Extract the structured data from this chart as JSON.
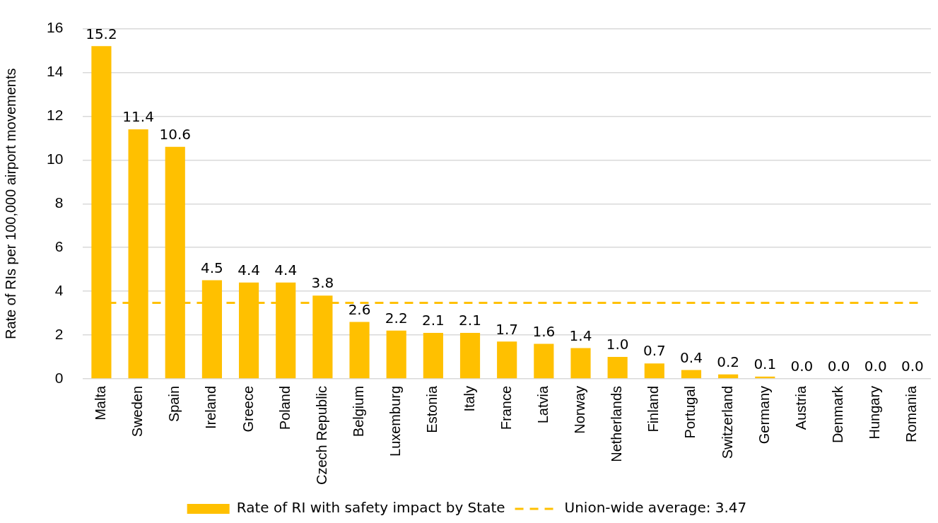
{
  "chart_data": {
    "type": "bar",
    "ylabel": "Rate of RIs per 100,000 airport movements",
    "categories": [
      "Malta",
      "Sweden",
      "Spain",
      "Ireland",
      "Greece",
      "Poland",
      "Czech Republic",
      "Belgium",
      "Luxemburg",
      "Estonia",
      "Italy",
      "France",
      "Latvia",
      "Norway",
      "Netherlands",
      "Finland",
      "Portugal",
      "Switzerland",
      "Germany",
      "Austria",
      "Denmark",
      "Hungary",
      "Romania"
    ],
    "series": [
      {
        "name": "Rate of RI with safety impact by State",
        "color": "#ffc000",
        "values": [
          15.2,
          11.4,
          10.6,
          4.5,
          4.4,
          4.4,
          3.8,
          2.6,
          2.2,
          2.1,
          2.1,
          1.7,
          1.6,
          1.4,
          1.0,
          0.7,
          0.4,
          0.2,
          0.1,
          0.0,
          0.0,
          0.0,
          0.0
        ],
        "value_labels": [
          "15.2",
          "11.4",
          "10.6",
          "4.5",
          "4.4",
          "4.4",
          "3.8",
          "2.6",
          "2.2",
          "2.1",
          "2.1",
          "1.7",
          "1.6",
          "1.4",
          "1.0",
          "0.7",
          "0.4",
          "0.2",
          "0.1",
          "0.0",
          "0.0",
          "0.0",
          "0.0"
        ]
      }
    ],
    "ylim": [
      0,
      16
    ],
    "yticks": [
      0,
      2,
      4,
      6,
      8,
      10,
      12,
      14,
      16
    ],
    "grid": "y",
    "legend": "bottom",
    "ref_lines": [
      {
        "axis": "y",
        "value": 3.47,
        "label": "Union-wide average: 3.47",
        "color": "#ffc000",
        "line_style": "dashed"
      }
    ]
  }
}
